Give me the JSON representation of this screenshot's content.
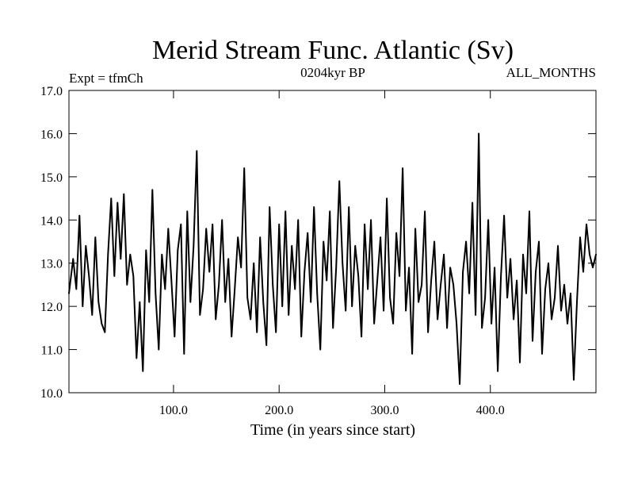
{
  "chart_data": {
    "type": "line",
    "title": "Merid Stream Func. Atlantic (Sv)",
    "subtitle": "0204kyr BP",
    "left_annotation": "Expt = tfmCh",
    "right_annotation": "ALL_MONTHS",
    "xlabel": "Time (in years since start)",
    "ylabel": "",
    "xlim": [
      1,
      500
    ],
    "ylim": [
      10.0,
      17.0
    ],
    "x_ticks": [
      {
        "value": 100,
        "label": "100.0"
      },
      {
        "value": 200,
        "label": "200.0"
      },
      {
        "value": 300,
        "label": "300.0"
      },
      {
        "value": 400,
        "label": "400.0"
      }
    ],
    "y_ticks": [
      {
        "value": 10.0,
        "label": "10.0"
      },
      {
        "value": 11.0,
        "label": "11.0"
      },
      {
        "value": 12.0,
        "label": "12.0"
      },
      {
        "value": 13.0,
        "label": "13.0"
      },
      {
        "value": 14.0,
        "label": "14.0"
      },
      {
        "value": 15.0,
        "label": "15.0"
      },
      {
        "value": 16.0,
        "label": "16.0"
      },
      {
        "value": 17.0,
        "label": "17.0"
      }
    ],
    "line_color": "#000000",
    "series": [
      {
        "name": "Merid Stream Func. Atlantic",
        "x": [
          1,
          5,
          8,
          11,
          14,
          17,
          20,
          23,
          26,
          29,
          32,
          35,
          38,
          41,
          44,
          47,
          50,
          53,
          56,
          59,
          62,
          65,
          68,
          71,
          74,
          77,
          80,
          83,
          86,
          89,
          92,
          95,
          98,
          101,
          104,
          107,
          110,
          113,
          116,
          119,
          122,
          125,
          128,
          131,
          134,
          137,
          140,
          143,
          146,
          149,
          152,
          155,
          158,
          161,
          164,
          167,
          170,
          173,
          176,
          179,
          182,
          185,
          188,
          191,
          194,
          197,
          200,
          203,
          206,
          209,
          212,
          215,
          218,
          221,
          224,
          227,
          230,
          233,
          236,
          239,
          242,
          245,
          248,
          251,
          254,
          257,
          260,
          263,
          266,
          269,
          272,
          275,
          278,
          281,
          284,
          287,
          290,
          293,
          296,
          299,
          302,
          305,
          308,
          311,
          314,
          317,
          320,
          323,
          326,
          329,
          332,
          335,
          338,
          341,
          344,
          347,
          350,
          353,
          356,
          359,
          362,
          365,
          368,
          371,
          374,
          377,
          380,
          383,
          386,
          389,
          392,
          395,
          398,
          401,
          404,
          407,
          410,
          413,
          416,
          419,
          422,
          425,
          428,
          431,
          434,
          437,
          440,
          443,
          446,
          449,
          452,
          455,
          458,
          461,
          464,
          467,
          470,
          473,
          476,
          479,
          482,
          485,
          488,
          491,
          494,
          497,
          500
        ],
        "values": [
          12.3,
          13.1,
          12.4,
          14.1,
          12.0,
          13.4,
          12.7,
          11.8,
          13.6,
          12.1,
          11.6,
          11.4,
          13.2,
          14.5,
          12.7,
          14.4,
          13.1,
          14.6,
          12.5,
          13.2,
          12.7,
          10.8,
          12.1,
          10.5,
          13.3,
          12.1,
          14.7,
          12.3,
          11.0,
          13.2,
          12.4,
          13.8,
          12.6,
          11.3,
          13.3,
          13.9,
          10.9,
          14.2,
          12.1,
          13.4,
          15.6,
          11.8,
          12.4,
          13.8,
          12.8,
          13.9,
          11.7,
          12.5,
          14.0,
          12.1,
          13.1,
          11.3,
          12.4,
          13.6,
          12.9,
          15.2,
          12.2,
          11.7,
          13.0,
          11.4,
          13.6,
          12.1,
          11.1,
          14.3,
          12.5,
          11.4,
          13.9,
          12.0,
          14.2,
          11.8,
          13.4,
          12.4,
          14.0,
          11.3,
          12.8,
          13.7,
          12.1,
          14.3,
          12.3,
          11.0,
          13.5,
          12.6,
          14.2,
          11.5,
          12.9,
          14.9,
          13.0,
          11.9,
          14.3,
          12.0,
          13.4,
          12.7,
          11.3,
          13.9,
          12.4,
          14.0,
          11.6,
          12.6,
          13.6,
          11.9,
          14.5,
          12.2,
          11.6,
          13.7,
          12.7,
          15.2,
          11.9,
          12.9,
          10.9,
          13.8,
          12.1,
          12.5,
          14.2,
          11.4,
          12.6,
          13.5,
          11.7,
          12.5,
          13.2,
          11.5,
          12.9,
          12.5,
          11.6,
          10.2,
          12.8,
          13.5,
          12.3,
          14.4,
          11.8,
          16.0,
          11.5,
          12.2,
          14.0,
          11.6,
          12.9,
          10.5,
          12.7,
          14.1,
          12.2,
          13.1,
          11.7,
          12.6,
          10.7,
          13.2,
          12.3,
          14.2,
          11.2,
          12.8,
          13.5,
          10.9,
          12.4,
          13.0,
          11.7,
          12.2,
          13.4,
          11.9,
          12.5,
          11.6,
          12.3,
          10.3,
          12.1,
          13.6,
          12.8,
          13.9,
          13.2,
          12.9,
          13.2
        ]
      }
    ]
  }
}
